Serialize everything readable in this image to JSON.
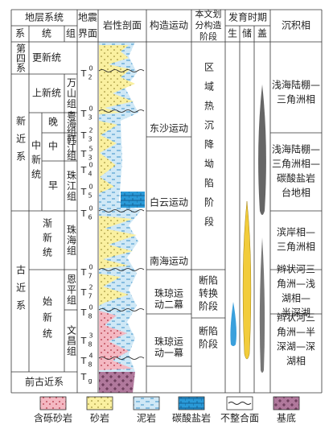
{
  "header": {
    "stratigraphy": "地层系统",
    "system": "系",
    "series": "统",
    "formation": "组",
    "seismic": [
      "地震",
      "界面"
    ],
    "lithology": "岩性剖面",
    "tectonic": "构造运动",
    "stage": [
      "本文划",
      "分构造",
      "阶段"
    ],
    "period": "发育时期",
    "source": "生",
    "reservoir": "储",
    "cap": "盖",
    "facies": "沉积相"
  },
  "systems": [
    "第四系",
    "新近系",
    "古近系"
  ],
  "series": [
    "更新统",
    "上新统",
    "中新统",
    "渐新统",
    "始新统"
  ],
  "miocene_parts": [
    "晚",
    "中",
    "早"
  ],
  "formations": [
    "万山组",
    "粤海组",
    "韩江组",
    "珠江组",
    "珠海组",
    "恩平组",
    "文昌组"
  ],
  "pre": "前古近系",
  "horizons": [
    {
      "name": "T",
      "sub": "2",
      "sup": "0"
    },
    {
      "name": "T",
      "sub": "3",
      "sup": "0"
    },
    {
      "name": "T",
      "sub": "3",
      "sup": "2"
    },
    {
      "name": "T",
      "sub": "3",
      "sup": "5"
    },
    {
      "name": "T",
      "sub": "4",
      "sup": "0"
    },
    {
      "name": "T",
      "sub": "5",
      "sup": "0"
    },
    {
      "name": "T",
      "sub": "6",
      "sup": "0"
    },
    {
      "name": "T",
      "sub": "7",
      "sup": "0"
    },
    {
      "name": "T",
      "sub": "7",
      "sup": "2"
    },
    {
      "name": "T",
      "sub": "8",
      "sup": "0"
    },
    {
      "name": "T",
      "sub": "8",
      "sup": "3"
    },
    {
      "name": "T",
      "sub": "8",
      "sup": "4"
    },
    {
      "name": "T",
      "sub": "g"
    }
  ],
  "movements": [
    [
      "东沙运动"
    ],
    [
      "白云运动"
    ],
    [
      "南海运动"
    ],
    [
      "珠琼运",
      "动二幕"
    ],
    [
      "珠琼运",
      "动一幕"
    ]
  ],
  "stages": [
    [
      "区域热沉降坳陷阶段"
    ],
    [
      "断陷",
      "转换",
      "阶段"
    ],
    [
      "断陷",
      "阶段"
    ]
  ],
  "facies": [
    [
      "浅海陆棚—",
      "三角洲相"
    ],
    [
      "浅海陆棚—",
      "三角洲相—",
      "碳酸盐岩",
      "台地相"
    ],
    [
      "滨岸相—",
      "三角洲相"
    ],
    [
      "辫状河三",
      "角洲—浅",
      "湖相—",
      "半深湖"
    ],
    [
      "辫状河三",
      "角洲—半",
      "深湖—深",
      "湖相"
    ]
  ],
  "legend": [
    "含砾砂岩",
    "砂岩",
    "泥岩",
    "碳酸盐岩",
    "不整合面",
    "基底"
  ]
}
